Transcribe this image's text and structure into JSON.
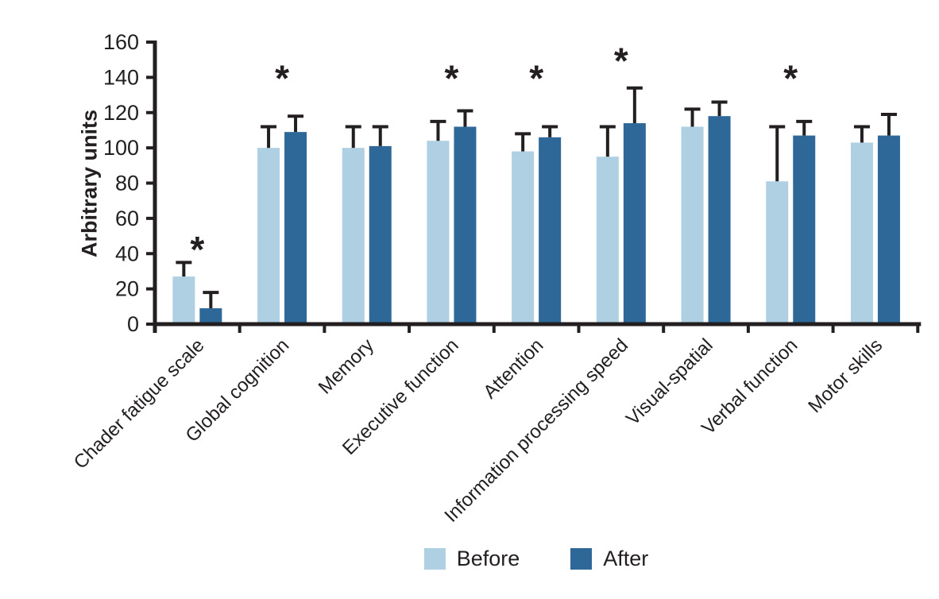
{
  "chart_data": {
    "type": "bar",
    "title": "",
    "xlabel": "",
    "ylabel": "Arbitrary units",
    "ylim": [
      0,
      160
    ],
    "yticks": [
      0,
      20,
      40,
      60,
      80,
      100,
      120,
      140,
      160
    ],
    "grid": false,
    "legend_position": "bottom-center",
    "categories": [
      "Chader fatigue scale",
      "Global cognition",
      "Memory",
      "Executive function",
      "Attention",
      "Information processing speed",
      "Visual-spatial",
      "Verbal function",
      "Motor skills"
    ],
    "series": [
      {
        "name": "Before",
        "color": "#aed0e2",
        "values": [
          27,
          100,
          100,
          104,
          98,
          95,
          112,
          81,
          103
        ],
        "errors_upper": [
          8,
          12,
          12,
          11,
          10,
          17,
          10,
          31,
          9
        ]
      },
      {
        "name": "After",
        "color": "#2d6898",
        "values": [
          9,
          109,
          101,
          112,
          106,
          114,
          118,
          107,
          107
        ],
        "errors_upper": [
          9,
          9,
          11,
          9,
          6,
          20,
          8,
          8,
          12
        ]
      }
    ],
    "significance": {
      "marker": "*",
      "flags": [
        true,
        true,
        false,
        true,
        true,
        true,
        false,
        true,
        false
      ],
      "marker_y_units": [
        46,
        143,
        null,
        143,
        143,
        153,
        null,
        143,
        null
      ]
    },
    "axis_color": "#231f20",
    "text_color": "#231f20"
  }
}
